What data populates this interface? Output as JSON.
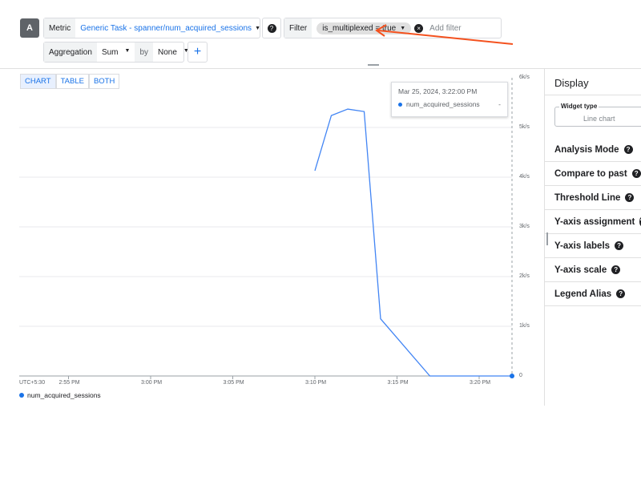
{
  "query": {
    "label": "A",
    "metric_label": "Metric",
    "metric_value": "Generic Task - spanner/num_acquired_sessions",
    "filter_label": "Filter",
    "filter_chip": "is_multiplexed = true",
    "add_filter_placeholder": "Add filter",
    "aggregation_label": "Aggregation",
    "aggregation_value": "Sum",
    "by_label": "by",
    "by_value": "None",
    "add_label": "+"
  },
  "view_tabs": [
    "CHART",
    "TABLE",
    "BOTH"
  ],
  "display": {
    "title": "Display",
    "widget_type_label": "Widget type",
    "widget_type_value": "Line chart",
    "items": [
      "Analysis Mode",
      "Compare to past",
      "Threshold Line",
      "Y-axis assignment",
      "Y-axis labels",
      "Y-axis scale",
      "Legend Alias"
    ]
  },
  "tooltip": {
    "time": "Mar 25, 2024, 3:22:00 PM",
    "series": "num_acquired_sessions",
    "value": "-"
  },
  "colors": {
    "accent": "#1a73e8",
    "line": "#4285f4",
    "annotation_arrow": "#f4511e"
  },
  "chart_data": {
    "type": "line",
    "timezone": "UTC+5:30",
    "x_ticks": [
      "2:55 PM",
      "3:00 PM",
      "3:05 PM",
      "3:10 PM",
      "3:15 PM",
      "3:20 PM"
    ],
    "y_ticks": [
      "0",
      "1k/s",
      "2k/s",
      "3k/s",
      "4k/s",
      "5k/s",
      "6k/s"
    ],
    "ylim": [
      0,
      6000
    ],
    "xlim": [
      "2:52 PM",
      "3:22 PM"
    ],
    "grid": true,
    "legend": "bottom-left",
    "series": [
      {
        "name": "num_acquired_sessions",
        "x": [
          "3:10 PM",
          "3:11 PM",
          "3:12 PM",
          "3:13 PM",
          "3:14 PM",
          "3:17 PM",
          "3:22 PM"
        ],
        "values": [
          4130,
          5240,
          5370,
          5320,
          1150,
          0,
          0
        ]
      }
    ]
  }
}
